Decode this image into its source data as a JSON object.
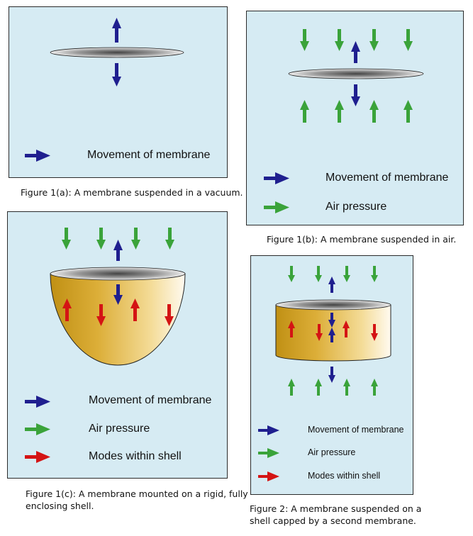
{
  "colors": {
    "panel_bg": "#d6ebf3",
    "movement": "#1f1f8f",
    "air": "#3aa33a",
    "modes": "#d41414",
    "shell_light": "#fff6d6",
    "shell_dark": "#c79a1c"
  },
  "icons": {
    "movement": "blue-arrow-icon",
    "air": "green-arrow-icon",
    "modes": "red-arrow-icon"
  },
  "fig1a": {
    "caption": "Figure 1(a): A membrane suspended in a vacuum.",
    "legend_movement": "Movement of membrane"
  },
  "fig1b": {
    "caption": "Figure 1(b): A membrane suspended in air.",
    "legend_movement": "Movement of membrane",
    "legend_air": "Air pressure"
  },
  "fig1c": {
    "caption_line1": "Figure 1(c): A membrane mounted on a rigid, fully",
    "caption_line2": "enclosing shell.",
    "legend_movement": "Movement of membrane",
    "legend_air": "Air pressure",
    "legend_modes": "Modes within shell"
  },
  "fig2": {
    "caption_line1": "Figure 2: A membrane suspended on a",
    "caption_line2": "shell capped by a second membrane.",
    "legend_movement": "Movement of membrane",
    "legend_air": "Air pressure",
    "legend_modes": "Modes within shell"
  }
}
